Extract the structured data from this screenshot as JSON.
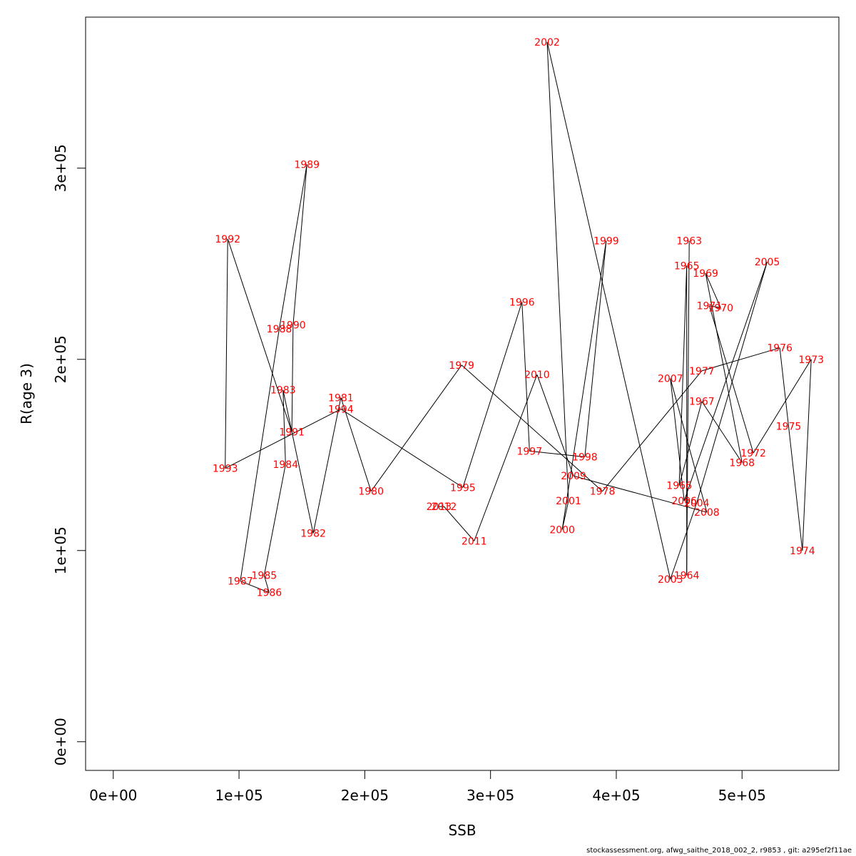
{
  "chart_data": {
    "type": "line",
    "xlabel": "SSB",
    "ylabel": "R(age 3)",
    "xlim": [
      -22000,
      577000
    ],
    "ylim": [
      -15000,
      379000
    ],
    "x_ticks": [
      0,
      100000,
      200000,
      300000,
      400000,
      500000
    ],
    "x_tick_labels": [
      "0e+00",
      "1e+05",
      "2e+05",
      "3e+05",
      "4e+05",
      "5e+05"
    ],
    "y_ticks": [
      0,
      100000,
      200000,
      300000
    ],
    "y_tick_labels": [
      "0e+00",
      "1e+05",
      "2e+05",
      "3e+05"
    ],
    "line_color": "#000000",
    "label_color": "#ff0000",
    "points": [
      {
        "year": "1963",
        "ssb": 458000,
        "r": 262000
      },
      {
        "year": "1964",
        "ssb": 456000,
        "r": 87000
      },
      {
        "year": "1965",
        "ssb": 456000,
        "r": 249000
      },
      {
        "year": "1966",
        "ssb": 450000,
        "r": 134000
      },
      {
        "year": "1967",
        "ssb": 468000,
        "r": 178000
      },
      {
        "year": "1968",
        "ssb": 500000,
        "r": 146000
      },
      {
        "year": "1969",
        "ssb": 471000,
        "r": 245000
      },
      {
        "year": "1970",
        "ssb": 483000,
        "r": 227000
      },
      {
        "year": "1971",
        "ssb": 474000,
        "r": 228000
      },
      {
        "year": "1972",
        "ssb": 509000,
        "r": 151000
      },
      {
        "year": "1973",
        "ssb": 555000,
        "r": 200000
      },
      {
        "year": "1974",
        "ssb": 548000,
        "r": 100000
      },
      {
        "year": "1975",
        "ssb": 537000,
        "r": 165000
      },
      {
        "year": "1976",
        "ssb": 530000,
        "r": 206000
      },
      {
        "year": "1977",
        "ssb": 468000,
        "r": 194000
      },
      {
        "year": "1978",
        "ssb": 389000,
        "r": 131000
      },
      {
        "year": "1979",
        "ssb": 277000,
        "r": 197000
      },
      {
        "year": "1980",
        "ssb": 205000,
        "r": 131000
      },
      {
        "year": "1981",
        "ssb": 181000,
        "r": 180000
      },
      {
        "year": "1982",
        "ssb": 159000,
        "r": 109000
      },
      {
        "year": "1983",
        "ssb": 135000,
        "r": 184000
      },
      {
        "year": "1984",
        "ssb": 137000,
        "r": 145000
      },
      {
        "year": "1985",
        "ssb": 120000,
        "r": 87000
      },
      {
        "year": "1986",
        "ssb": 124000,
        "r": 78000
      },
      {
        "year": "1987",
        "ssb": 101000,
        "r": 84000
      },
      {
        "year": "1988",
        "ssb": 132000,
        "r": 216000
      },
      {
        "year": "1989",
        "ssb": 154000,
        "r": 302000
      },
      {
        "year": "1990",
        "ssb": 143000,
        "r": 218000
      },
      {
        "year": "1991",
        "ssb": 142000,
        "r": 162000
      },
      {
        "year": "1992",
        "ssb": 91000,
        "r": 263000
      },
      {
        "year": "1993",
        "ssb": 89000,
        "r": 143000
      },
      {
        "year": "1994",
        "ssb": 181000,
        "r": 174000
      },
      {
        "year": "1995",
        "ssb": 278000,
        "r": 133000
      },
      {
        "year": "1996",
        "ssb": 325000,
        "r": 230000
      },
      {
        "year": "1997",
        "ssb": 331000,
        "r": 152000
      },
      {
        "year": "1998",
        "ssb": 375000,
        "r": 149000
      },
      {
        "year": "1999",
        "ssb": 392000,
        "r": 262000
      },
      {
        "year": "2000",
        "ssb": 357000,
        "r": 111000
      },
      {
        "year": "2001",
        "ssb": 362000,
        "r": 126000
      },
      {
        "year": "2002",
        "ssb": 345000,
        "r": 366000
      },
      {
        "year": "2003",
        "ssb": 443000,
        "r": 85000
      },
      {
        "year": "2004",
        "ssb": 464000,
        "r": 125000
      },
      {
        "year": "2005",
        "ssb": 520000,
        "r": 251000
      },
      {
        "year": "2006",
        "ssb": 454000,
        "r": 126000
      },
      {
        "year": "2007",
        "ssb": 443000,
        "r": 190000
      },
      {
        "year": "2008",
        "ssb": 472000,
        "r": 120000
      },
      {
        "year": "2009",
        "ssb": 366000,
        "r": 139000
      },
      {
        "year": "2010",
        "ssb": 337000,
        "r": 192000
      },
      {
        "year": "2011",
        "ssb": 287000,
        "r": 105000
      },
      {
        "year": "2012",
        "ssb": 263000,
        "r": 123000
      },
      {
        "year": "2013",
        "ssb": 259000,
        "r": 123000
      }
    ]
  },
  "footer": "stockassessment.org, afwg_saithe_2018_002_2, r9853 , git: a295ef2f11ae"
}
